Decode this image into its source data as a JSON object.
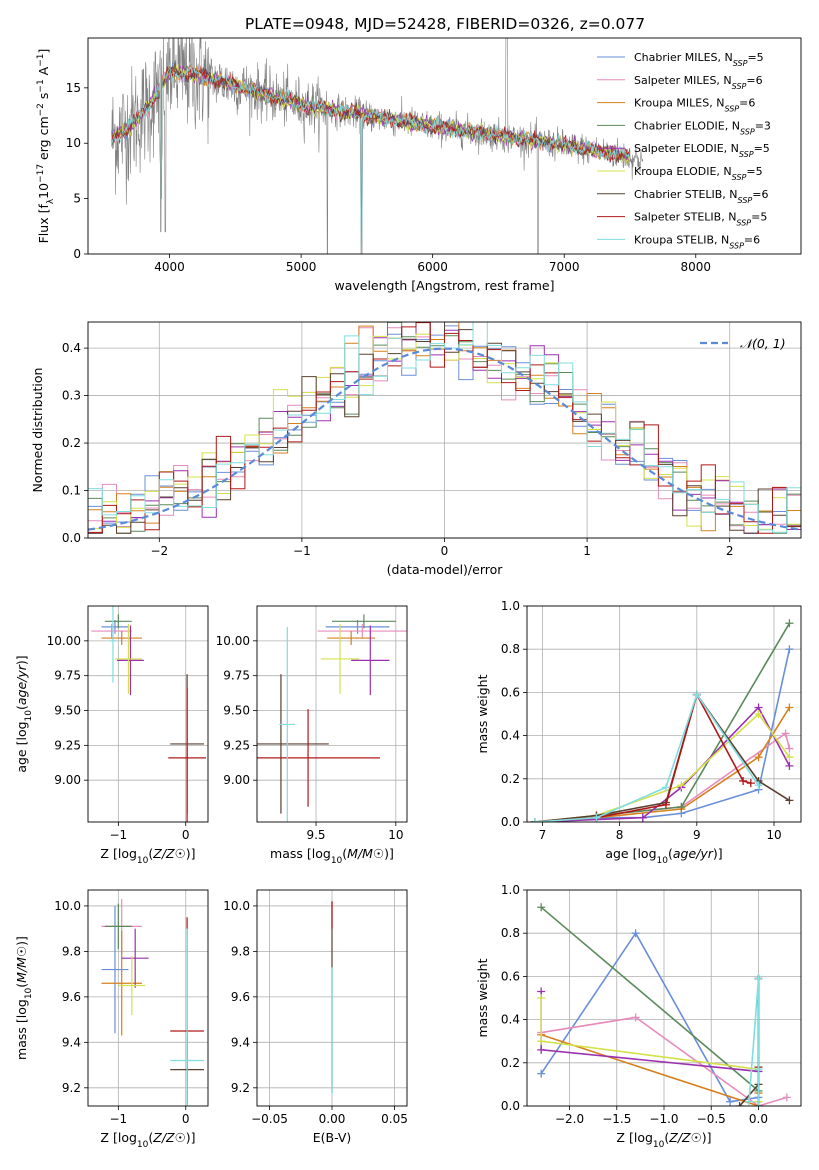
{
  "figure": {
    "title": "PLATE=0948, MJD=52428, FIBERID=0326, z=0.077"
  },
  "models": [
    {
      "label": "Chabrier MILES, N",
      "sub": "SSP",
      "tail": "=5",
      "color": "#6a8fd8"
    },
    {
      "label": "Salpeter MILES, N",
      "sub": "SSP",
      "tail": "=6",
      "color": "#e68cbc"
    },
    {
      "label": "Kroupa MILES, N",
      "sub": "SSP",
      "tail": "=6",
      "color": "#d6801e"
    },
    {
      "label": "Chabrier ELODIE, N",
      "sub": "SSP",
      "tail": "=3",
      "color": "#5a8a5a"
    },
    {
      "label": "Salpeter ELODIE, N",
      "sub": "SSP",
      "tail": "=5",
      "color": "#9b30b0"
    },
    {
      "label": "Kroupa ELODIE, N",
      "sub": "SSP",
      "tail": "=5",
      "color": "#d4e04a"
    },
    {
      "label": "Chabrier STELIB, N",
      "sub": "SSP",
      "tail": "=6",
      "color": "#5a4030"
    },
    {
      "label": "Salpeter STELIB, N",
      "sub": "SSP",
      "tail": "=5",
      "color": "#b01818"
    },
    {
      "label": "Kroupa STELIB, N",
      "sub": "SSP",
      "tail": "=6",
      "color": "#80dede"
    }
  ],
  "chart_data": [
    {
      "id": "spectrum",
      "type": "line",
      "xlabel": "wavelength [Angstrom, rest frame]",
      "ylabel_parts": [
        "Flux [f",
        "λ",
        "10",
        "−17",
        " erg cm",
        "−2",
        " s",
        "−1",
        " A",
        "−1",
        "]"
      ],
      "xlim": [
        3380,
        8800
      ],
      "ylim": [
        0,
        19.5
      ],
      "xticks": [
        4000,
        5000,
        6000,
        7000,
        8000
      ],
      "yticks": [
        0,
        5,
        10,
        15
      ],
      "data_color": "#808080",
      "continuum_anchors": [
        [
          3560,
          10.5
        ],
        [
          3700,
          11.5
        ],
        [
          3850,
          13.5
        ],
        [
          4000,
          16.5
        ],
        [
          4200,
          16.2
        ],
        [
          4500,
          15.2
        ],
        [
          5000,
          13.5
        ],
        [
          5500,
          12.5
        ],
        [
          6000,
          11.5
        ],
        [
          6500,
          10.7
        ],
        [
          7000,
          9.8
        ],
        [
          7400,
          9.0
        ],
        [
          7600,
          8.5
        ]
      ]
    },
    {
      "id": "residuals",
      "type": "histogram",
      "xlabel": "(data-model)/error",
      "ylabel": "Normed distribution",
      "xlim": [
        -2.5,
        2.5
      ],
      "ylim": [
        0,
        0.455
      ],
      "xticks": [
        -2,
        -1,
        0,
        1,
        2
      ],
      "yticks": [
        0.0,
        0.1,
        0.2,
        0.3,
        0.4
      ],
      "reference": {
        "name": "𝒩(0, 1)",
        "mean": 0,
        "sigma": 1,
        "color": "#5b8ad6"
      }
    },
    {
      "id": "age-vs-Z",
      "type": "errorbar",
      "xlabel": "Z [log10(Z/Z☉)]",
      "ylabel": "age  [log10(age/yr)]",
      "xlim": [
        -1.45,
        0.33
      ],
      "ylim": [
        8.7,
        10.25
      ],
      "xticks": [
        -1,
        0
      ],
      "yticks": [
        9.0,
        9.25,
        9.5,
        9.75,
        10.0
      ],
      "points": [
        {
          "model": 0,
          "x": -1.05,
          "xerr": 0.2,
          "y": 10.1,
          "yerr": 0.05
        },
        {
          "model": 1,
          "x": -1.1,
          "xerr": 0.3,
          "y": 10.07,
          "yerr": 0.05
        },
        {
          "model": 2,
          "x": -0.95,
          "xerr": 0.3,
          "y": 10.02,
          "yerr": 0.05
        },
        {
          "model": 3,
          "x": -1.0,
          "xerr": 0.2,
          "y": 10.14,
          "yerr": 0.05
        },
        {
          "model": 4,
          "x": -0.82,
          "xerr": 0.2,
          "y": 9.86,
          "yerr": 0.25
        },
        {
          "model": 5,
          "x": -0.85,
          "xerr": 0.2,
          "y": 9.87,
          "yerr": 0.25
        },
        {
          "model": 6,
          "x": 0.02,
          "xerr": 0.25,
          "y": 9.26,
          "yerr": 0.5
        },
        {
          "model": 7,
          "x": 0.02,
          "xerr": 0.28,
          "y": 9.16,
          "yerr": 0.5
        },
        {
          "model": 8,
          "x": -1.08,
          "xerr": 0.05,
          "y": 10.0,
          "yerr": 0.3
        }
      ]
    },
    {
      "id": "age-vs-mass",
      "type": "errorbar",
      "xlabel": "mass [log10(M/M☉)]",
      "ylabel": "",
      "xlim": [
        9.13,
        10.07
      ],
      "ylim": [
        8.7,
        10.25
      ],
      "xticks": [
        9.5,
        10.0
      ],
      "yticks": [
        9.0,
        9.25,
        9.5,
        9.75,
        10.0
      ],
      "points": [
        {
          "model": 0,
          "x": 9.76,
          "xerr": 0.2,
          "y": 10.1,
          "yerr": 0.05
        },
        {
          "model": 1,
          "x": 9.79,
          "xerr": 0.28,
          "y": 10.07,
          "yerr": 0.05
        },
        {
          "model": 2,
          "x": 9.72,
          "xerr": 0.15,
          "y": 10.02,
          "yerr": 0.05
        },
        {
          "model": 3,
          "x": 9.8,
          "xerr": 0.2,
          "y": 10.14,
          "yerr": 0.05
        },
        {
          "model": 4,
          "x": 9.84,
          "xerr": 0.12,
          "y": 9.86,
          "yerr": 0.25
        },
        {
          "model": 5,
          "x": 9.65,
          "xerr": 0.12,
          "y": 9.87,
          "yerr": 0.25
        },
        {
          "model": 6,
          "x": 9.28,
          "xerr": 0.3,
          "y": 9.26,
          "yerr": 0.5
        },
        {
          "model": 7,
          "x": 9.45,
          "xerr": 0.45,
          "y": 9.16,
          "yerr": 0.35
        },
        {
          "model": 8,
          "x": 9.32,
          "xerr": 0.05,
          "y": 9.4,
          "yerr": 0.7
        }
      ]
    },
    {
      "id": "weight-vs-age",
      "type": "line",
      "xlabel": "age  [log10(age/yr)]",
      "ylabel": "mass weight",
      "xlim": [
        6.8,
        10.35
      ],
      "ylim": [
        0,
        1.0
      ],
      "xticks": [
        7,
        8,
        9,
        10
      ],
      "yticks": [
        0.0,
        0.2,
        0.4,
        0.6,
        0.8,
        1.0
      ],
      "series": [
        {
          "model": 0,
          "x": [
            6.9,
            7.7,
            8.3,
            8.8,
            9.8,
            10.2
          ],
          "y": [
            0.0,
            0.02,
            0.02,
            0.04,
            0.15,
            0.8
          ]
        },
        {
          "model": 1,
          "x": [
            6.9,
            7.7,
            8.8,
            10.15,
            10.2
          ],
          "y": [
            0.0,
            0.03,
            0.07,
            0.41,
            0.34
          ]
        },
        {
          "model": 2,
          "x": [
            6.9,
            7.7,
            8.8,
            9.8,
            10.2
          ],
          "y": [
            0.0,
            0.02,
            0.06,
            0.3,
            0.53
          ]
        },
        {
          "model": 3,
          "x": [
            6.9,
            8.8,
            10.2
          ],
          "y": [
            0.0,
            0.07,
            0.92
          ]
        },
        {
          "model": 4,
          "x": [
            6.9,
            8.3,
            8.8,
            9.8,
            10.2
          ],
          "y": [
            0.0,
            0.02,
            0.16,
            0.53,
            0.26
          ]
        },
        {
          "model": 5,
          "x": [
            6.9,
            7.7,
            8.8,
            9.8,
            10.2
          ],
          "y": [
            0.0,
            0.03,
            0.17,
            0.5,
            0.3
          ]
        },
        {
          "model": 6,
          "x": [
            6.9,
            7.7,
            8.6,
            9.0,
            9.8,
            10.2
          ],
          "y": [
            0.0,
            0.03,
            0.09,
            0.59,
            0.19,
            0.1
          ]
        },
        {
          "model": 7,
          "x": [
            6.9,
            7.7,
            8.6,
            9.0,
            9.6,
            9.7
          ],
          "y": [
            0.0,
            0.02,
            0.08,
            0.59,
            0.19,
            0.18
          ]
        },
        {
          "model": 8,
          "x": [
            6.9,
            7.7,
            8.6,
            9.0,
            9.8
          ],
          "y": [
            0.0,
            0.02,
            0.16,
            0.59,
            0.17
          ]
        }
      ]
    },
    {
      "id": "mass-vs-Z",
      "type": "errorbar",
      "xlabel": "Z [log10(Z/Z☉)]",
      "ylabel": "mass [log10(M/M☉)]",
      "xlim": [
        -1.45,
        0.33
      ],
      "ylim": [
        9.12,
        10.07
      ],
      "xticks": [
        -1,
        0
      ],
      "yticks": [
        9.2,
        9.4,
        9.6,
        9.8,
        10.0
      ],
      "points": [
        {
          "model": 0,
          "x": -1.05,
          "xerr": 0.2,
          "y": 9.72,
          "yerr": 0.28
        },
        {
          "model": 1,
          "x": -0.95,
          "xerr": 0.3,
          "y": 9.91,
          "yerr": 0.12
        },
        {
          "model": 2,
          "x": -0.95,
          "xerr": 0.3,
          "y": 9.66,
          "yerr": 0.23
        },
        {
          "model": 3,
          "x": -1.0,
          "xerr": 0.2,
          "y": 9.91,
          "yerr": 0.1
        },
        {
          "model": 4,
          "x": -0.75,
          "xerr": 0.2,
          "y": 9.77,
          "yerr": 0.13
        },
        {
          "model": 5,
          "x": -0.8,
          "xerr": 0.2,
          "y": 9.65,
          "yerr": 0.13
        },
        {
          "model": 6,
          "x": 0.02,
          "xerr": 0.25,
          "y": 9.28,
          "yerr": 0.15
        },
        {
          "model": 7,
          "x": 0.02,
          "xerr": 0.25,
          "y": 9.45,
          "yerr": 0.5
        },
        {
          "model": 8,
          "x": 0.02,
          "xerr": 0.25,
          "y": 9.32,
          "yerr": 0.58
        }
      ]
    },
    {
      "id": "mass-vs-EBV",
      "type": "errorbar",
      "xlabel": "E(B-V)",
      "ylabel": "",
      "xlim": [
        -0.06,
        0.06
      ],
      "ylim": [
        9.12,
        10.07
      ],
      "xticks": [
        -0.05,
        0.0,
        0.05
      ],
      "xticklabels": [
        "−0.05",
        "0.00",
        "0.05"
      ],
      "yticks": [
        9.2,
        9.4,
        9.6,
        9.8,
        10.0
      ],
      "points": [
        {
          "model": 6,
          "x": 0.0,
          "xerr": 0.0,
          "y": 9.6,
          "yerr": 0.42
        },
        {
          "model": 7,
          "x": 0.0,
          "xerr": 0.0,
          "y": 9.96,
          "yerr": 0.06
        },
        {
          "model": 8,
          "x": 0.0,
          "xerr": 0.0,
          "y": 9.45,
          "yerr": 0.28
        }
      ]
    },
    {
      "id": "weight-vs-Z",
      "type": "line",
      "xlabel": "Z [log10(Z/Z☉)]",
      "ylabel": "mass weight",
      "xlim": [
        -2.45,
        0.45
      ],
      "ylim": [
        0,
        1.0
      ],
      "xticks": [
        -2.0,
        -1.5,
        -1.0,
        -0.5,
        0.0
      ],
      "xticklabels": [
        "−2.0",
        "−1.5",
        "−1.0",
        "−0.5",
        "0.0"
      ],
      "yticks": [
        0.0,
        0.2,
        0.4,
        0.6,
        0.8,
        1.0
      ],
      "series": [
        {
          "model": 0,
          "x": [
            -2.3,
            -1.3,
            -0.3,
            0.0,
            0.0
          ],
          "y": [
            0.15,
            0.8,
            0.02,
            0.04,
            0.17
          ]
        },
        {
          "model": 1,
          "x": [
            -2.3,
            -1.3,
            0.0,
            0.3
          ],
          "y": [
            0.34,
            0.41,
            0.0,
            0.04
          ]
        },
        {
          "model": 2,
          "x": [
            -2.3,
            0.0,
            0.0
          ],
          "y": [
            0.33,
            0.0,
            0.06
          ]
        },
        {
          "model": 3,
          "x": [
            -2.3,
            0.0
          ],
          "y": [
            0.92,
            0.07
          ]
        },
        {
          "model": 4,
          "x": [
            -2.3,
            -2.3,
            0.0,
            0.0
          ],
          "y": [
            0.53,
            0.26,
            0.16,
            0.02
          ]
        },
        {
          "model": 5,
          "x": [
            -2.3,
            -2.3,
            0.0,
            0.0
          ],
          "y": [
            0.5,
            0.3,
            0.17,
            0.02
          ]
        },
        {
          "model": 6,
          "x": [
            0.0,
            0.0,
            -0.2
          ],
          "y": [
            0.59,
            0.1,
            0.0
          ]
        },
        {
          "model": 7,
          "x": [
            0.0,
            0.0,
            0.0
          ],
          "y": [
            0.59,
            0.18,
            0.0
          ]
        },
        {
          "model": 8,
          "x": [
            -0.1,
            0.0,
            0.0,
            0.0
          ],
          "y": [
            0.02,
            0.59,
            0.17,
            0.0
          ]
        }
      ]
    }
  ]
}
